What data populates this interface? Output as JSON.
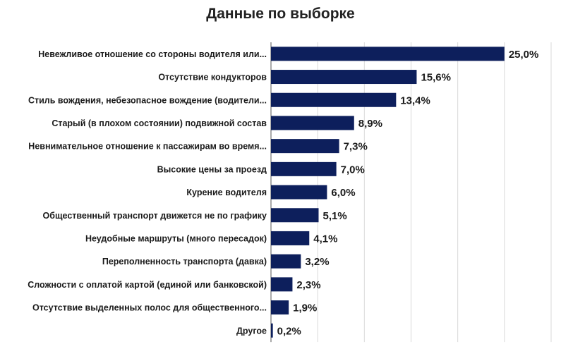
{
  "chart_data": {
    "type": "bar",
    "orientation": "horizontal",
    "title": "Данные по выборке",
    "categories": [
      "Невежливое отношение со стороны водителя или...",
      "Отсутствие кондукторов",
      "Стиль вождения, небезопасное вождение (водители...",
      "Старый (в плохом состоянии) подвижной состав",
      "Невнимательное отношение к пассажирам во время...",
      "Высокие цены за проезд",
      "Курение водителя",
      "Общественный транспорт движется не по графику",
      "Неудобные маршруты (много пересадок)",
      "Переполненность транспорта (давка)",
      "Сложности с оплатой картой (единой или банковской)",
      "Отсутствие выделенных полос для общественного...",
      "Другое"
    ],
    "values": [
      25.0,
      15.6,
      13.4,
      8.9,
      7.3,
      7.0,
      6.0,
      5.1,
      4.1,
      3.2,
      2.3,
      1.9,
      0.2
    ],
    "value_labels": [
      "25,0%",
      "15,6%",
      "13,4%",
      "8,9%",
      "7,3%",
      "7,0%",
      "6,0%",
      "5,1%",
      "4,1%",
      "3,2%",
      "2,3%",
      "1,9%",
      "0,2%"
    ],
    "xlim": [
      0,
      30
    ],
    "grid": true,
    "legend": "none",
    "bar_color": "#0d1f5c"
  }
}
